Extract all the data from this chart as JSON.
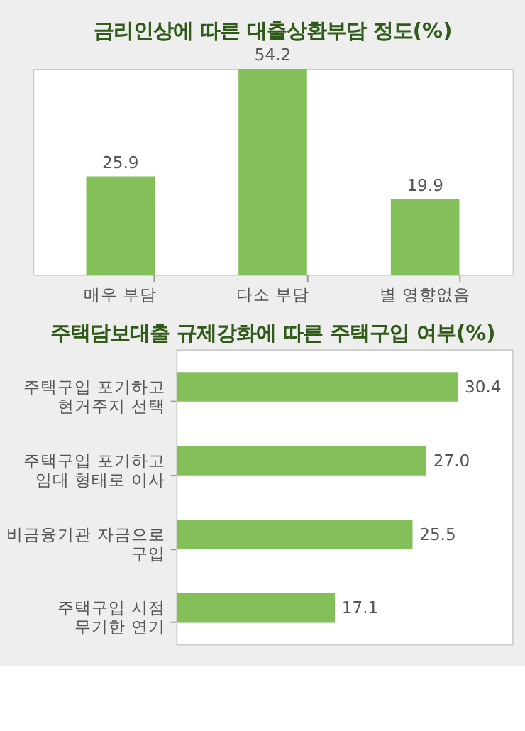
{
  "chart_data": [
    {
      "type": "bar",
      "title": "금리인상에 따른 대출상환부담 정도(%)",
      "categories": [
        "매우 부담",
        "다소 부담",
        "별 영향없음"
      ],
      "values": [
        25.9,
        54.2,
        19.9
      ],
      "color": "#84c05a",
      "value_labels": [
        "25.9",
        "54.2",
        "19.9"
      ]
    },
    {
      "type": "bar",
      "orientation": "horizontal",
      "title": "주택담보대출 규제강화에 따른 주택구입 여부(%)",
      "categories": [
        "주택구입 포기하고 현거주지 선택",
        "주택구입 포기하고 임대 형태로 이사",
        "비금융기관 자금으로 구입",
        "주택구입 시점 무기한 연기"
      ],
      "values": [
        30.4,
        27.0,
        25.5,
        17.1
      ],
      "color": "#84c05a",
      "value_labels": [
        "30.4",
        "27.0",
        "25.5",
        "17.1"
      ]
    }
  ]
}
